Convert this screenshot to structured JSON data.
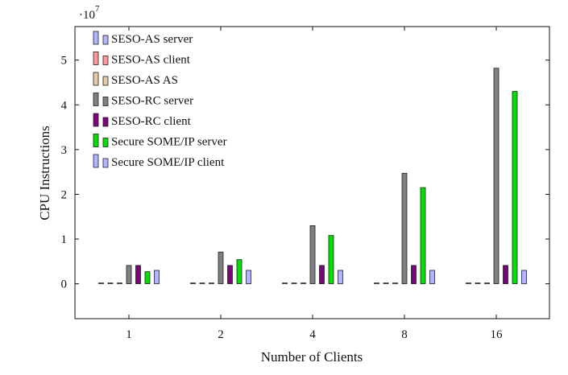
{
  "chart_data": {
    "type": "bar",
    "xlabel": "Number of Clients",
    "ylabel": "CPU Instructions",
    "scale_base": "·10",
    "scale_exp": "7",
    "scale_factor": 10000000,
    "categories": [
      "1",
      "2",
      "4",
      "8",
      "16"
    ],
    "ylim": [
      -7800000,
      57500000
    ],
    "yticks": [
      0,
      10000000,
      20000000,
      30000000,
      40000000,
      50000000
    ],
    "ytick_labels": [
      "0",
      "1",
      "2",
      "3",
      "4",
      "5"
    ],
    "grid": false,
    "legend_position": "top-left",
    "series": [
      {
        "name": "SESO-AS server",
        "color": "#b3b3ff",
        "values": [
          50000,
          50000,
          50000,
          50000,
          50000
        ]
      },
      {
        "name": "SESO-AS client",
        "color": "#ff9999",
        "values": [
          50000,
          50000,
          50000,
          50000,
          50000
        ]
      },
      {
        "name": "SESO-AS AS",
        "color": "#e6c9a8",
        "values": [
          50000,
          50000,
          50000,
          50000,
          50000
        ]
      },
      {
        "name": "SESO-RC server",
        "color": "#808080",
        "values": [
          4100000,
          7100000,
          13000000,
          24700000,
          48200000
        ]
      },
      {
        "name": "SESO-RC client",
        "color": "#800080",
        "values": [
          4100000,
          4100000,
          4100000,
          4100000,
          4100000
        ]
      },
      {
        "name": "Secure SOME/IP server",
        "color": "#00e000",
        "values": [
          2700000,
          5400000,
          10800000,
          21500000,
          43000000
        ]
      },
      {
        "name": "Secure SOME/IP client",
        "color": "#b3b3ff",
        "values": [
          3000000,
          3000000,
          3000000,
          3000000,
          3000000
        ]
      }
    ]
  }
}
